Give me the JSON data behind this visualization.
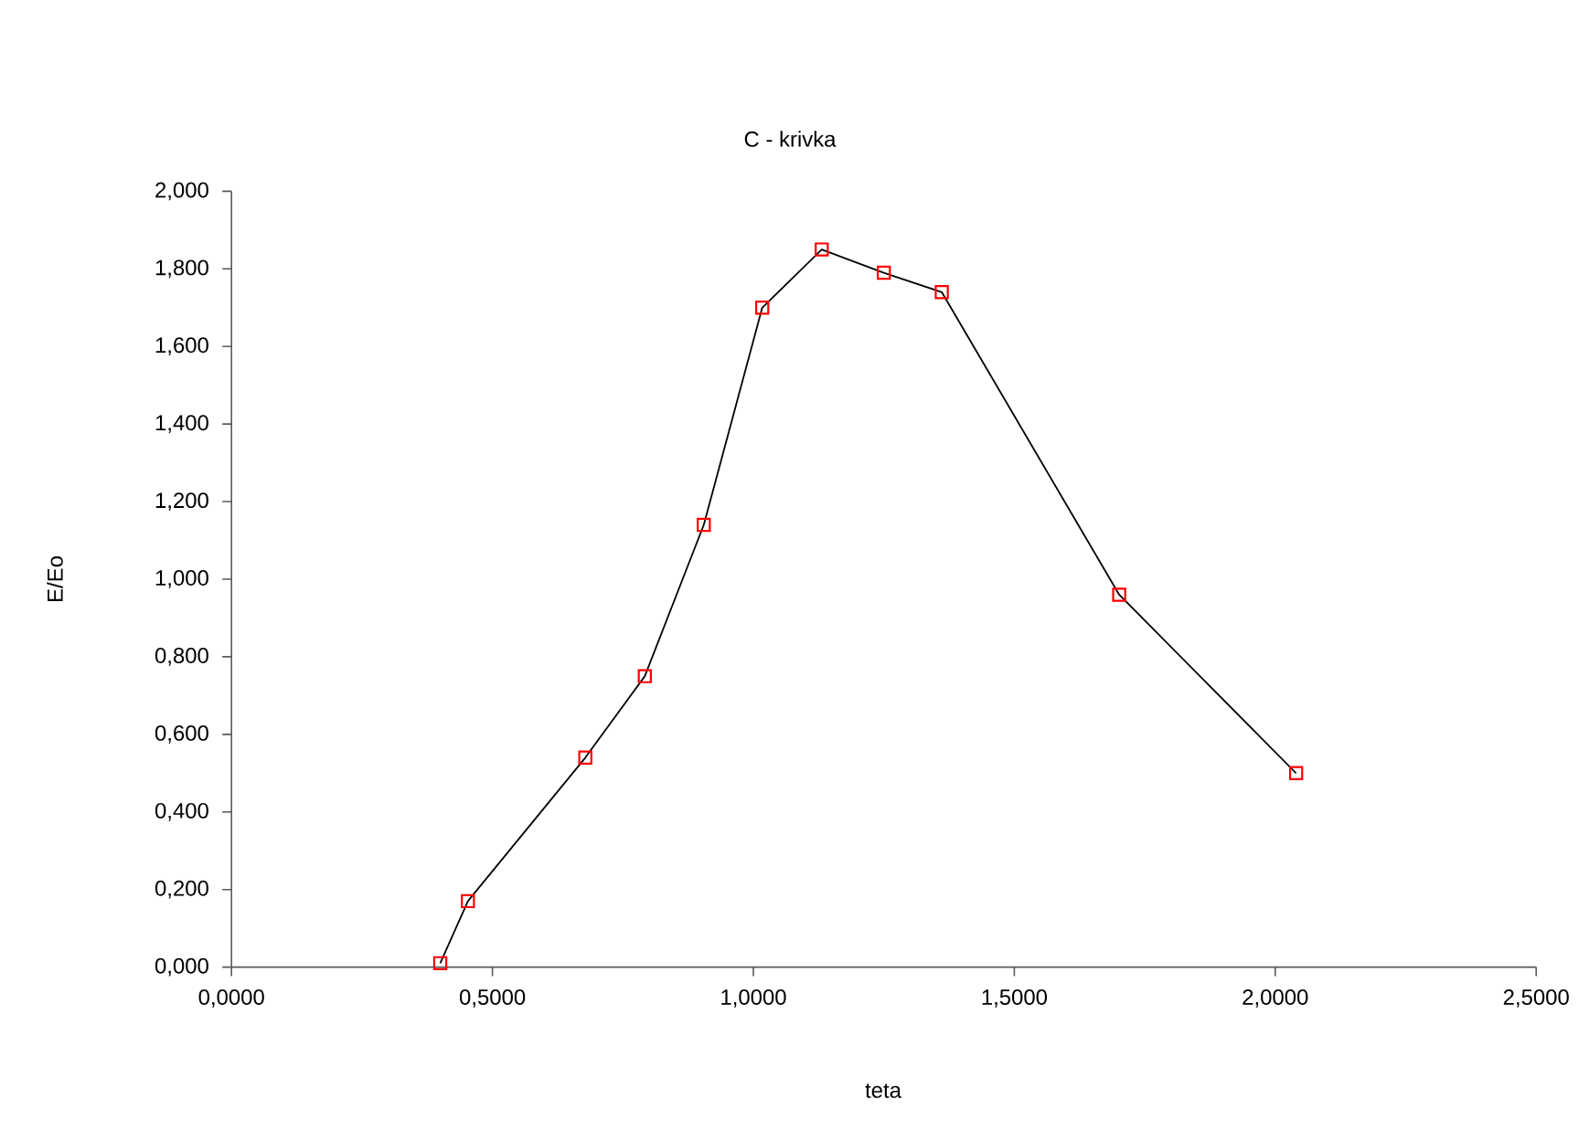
{
  "chart_data": {
    "type": "line",
    "title": "C - krivka",
    "xlabel": "teta",
    "ylabel": "E/Eo",
    "x": [
      0.4,
      0.453,
      0.678,
      0.792,
      0.905,
      1.017,
      1.131,
      1.25,
      1.361,
      1.701,
      2.04
    ],
    "series": [
      {
        "color": "#000000",
        "colors": [
          "#ff0000",
          "#ff0000",
          "#ff0000",
          "#ff0000",
          "#ff0000",
          "#ff0000",
          "#ff0000",
          "#ff0000",
          "#ff0000",
          "#ff0000",
          "#ff0000"
        ],
        "values": [
          0.01,
          0.17,
          0.54,
          0.75,
          1.14,
          1.7,
          1.85,
          1.79,
          1.74,
          0.96,
          0.5
        ]
      }
    ],
    "xlim": [
      0,
      2.5
    ],
    "xticks": [
      {
        "value": 0,
        "label": "0,0000"
      },
      {
        "value": 0.5,
        "label": "0,5000"
      },
      {
        "value": 1.0,
        "label": "1,0000"
      },
      {
        "value": 1.5,
        "label": "1,5000"
      },
      {
        "value": 2.0,
        "label": "2,0000"
      },
      {
        "value": 2.5,
        "label": "2,5000"
      }
    ],
    "ylim": [
      0,
      2
    ],
    "yticks": [
      {
        "value": 0,
        "label": "0,000"
      },
      {
        "value": 0.2,
        "label": "0,200"
      },
      {
        "value": 0.4,
        "label": "0,400"
      },
      {
        "value": 0.6,
        "label": "0,600"
      },
      {
        "value": 0.8,
        "label": "0,800"
      },
      {
        "value": 1.0,
        "label": "1,000"
      },
      {
        "value": 1.2,
        "label": "1,200"
      },
      {
        "value": 1.4,
        "label": "1,400"
      },
      {
        "value": 1.6,
        "label": "1,600"
      },
      {
        "value": 1.8,
        "label": "1,800"
      },
      {
        "value": 2.0,
        "label": "2,000"
      }
    ],
    "marker": "square",
    "line_style": "solid"
  }
}
